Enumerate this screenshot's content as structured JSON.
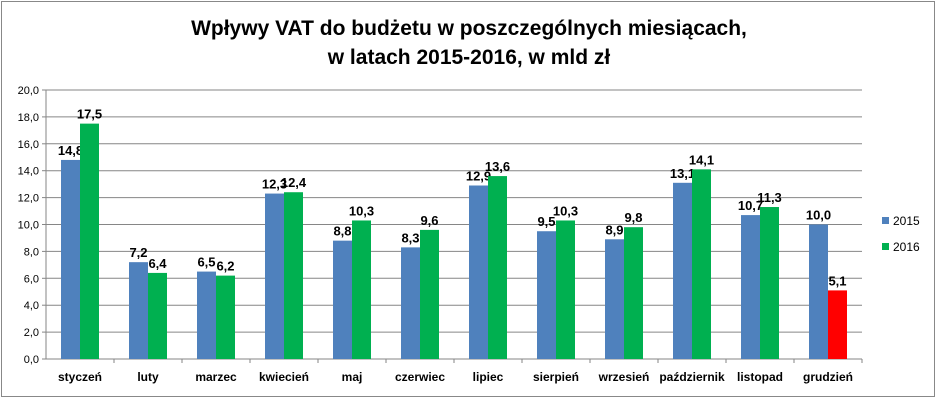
{
  "chart_data": {
    "type": "bar",
    "title_line1": "Wpływy VAT do budżetu w poszczególnych miesiącach,",
    "title_line2": "w latach 2015-2016, w mld zł",
    "categories": [
      "styczeń",
      "luty",
      "marzec",
      "kwiecień",
      "maj",
      "czerwiec",
      "lipiec",
      "sierpień",
      "wrzesień",
      "październik",
      "listopad",
      "grudzień"
    ],
    "series": [
      {
        "name": "2015",
        "color": "#4F81BD",
        "values": [
          14.8,
          7.2,
          6.5,
          12.3,
          8.8,
          8.3,
          12.9,
          9.5,
          8.9,
          13.1,
          10.7,
          10.0
        ],
        "labels": [
          "14,8",
          "7,2",
          "6,5",
          "12,3",
          "8,8",
          "8,3",
          "12,9",
          "9,5",
          "8,9",
          "13,1",
          "10,7",
          "10,0"
        ]
      },
      {
        "name": "2016",
        "color": "#00B050",
        "highlight": {
          "index": 11,
          "color": "#FF0000"
        },
        "values": [
          17.5,
          6.4,
          6.2,
          12.4,
          10.3,
          9.6,
          13.6,
          10.3,
          9.8,
          14.1,
          11.3,
          5.1
        ],
        "labels": [
          "17,5",
          "6,4",
          "6,2",
          "12,4",
          "10,3",
          "9,6",
          "13,6",
          "10,3",
          "9,8",
          "14,1",
          "11,3",
          "5,1"
        ]
      }
    ],
    "ylim": [
      0,
      20
    ],
    "yticks": [
      0,
      2,
      4,
      6,
      8,
      10,
      12,
      14,
      16,
      18,
      20
    ],
    "ytick_labels": [
      "0,0",
      "2,0",
      "4,0",
      "6,0",
      "8,0",
      "10,0",
      "12,0",
      "14,0",
      "16,0",
      "18,0",
      "20,0"
    ],
    "grid": true,
    "legend_position": "right",
    "gridline_color": "#868686"
  }
}
